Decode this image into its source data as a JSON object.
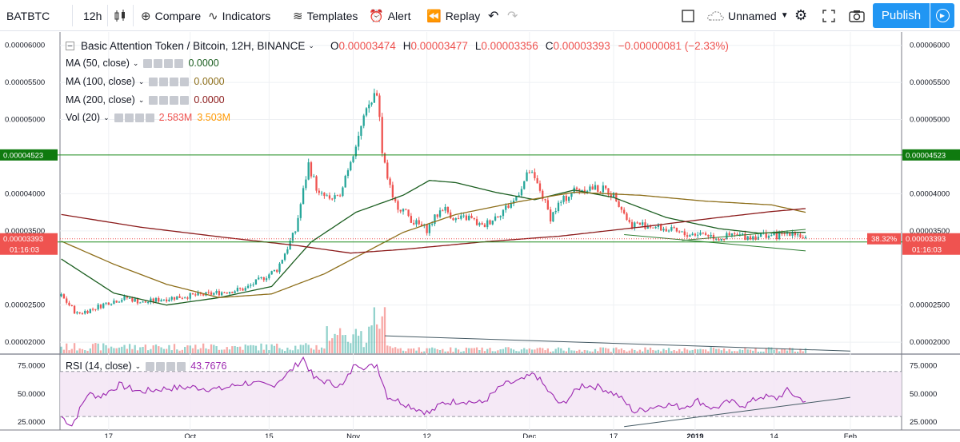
{
  "toolbar": {
    "symbol": "BATBTC",
    "interval": "12h",
    "compare": "Compare",
    "indicators": "Indicators",
    "templates": "Templates",
    "alert": "Alert",
    "replay": "Replay",
    "layout_name": "Unnamed",
    "publish": "Publish"
  },
  "legend": {
    "title": "Basic Attention Token / Bitcoin, 12H, BINANCE",
    "o_label": "O",
    "o_value": "0.00003474",
    "h_label": "H",
    "h_value": "0.00003477",
    "l_label": "L",
    "l_value": "0.00003356",
    "c_label": "C",
    "c_value": "0.00003393",
    "change": "−0.00000081 (−2.33%)",
    "ma50": {
      "label": "MA (50, close)",
      "value": "0.0000",
      "color": "#1b5e20"
    },
    "ma100": {
      "label": "MA (100, close)",
      "value": "0.0000",
      "color": "#8d6e1a"
    },
    "ma200": {
      "label": "MA (200, close)",
      "value": "0.0000",
      "color": "#8b1a1a"
    },
    "vol": {
      "label": "Vol (20)",
      "value1": "2.583M",
      "value2": "3.503M"
    },
    "rsi": {
      "label": "RSI (14, close)",
      "value": "43.7676"
    }
  },
  "colors": {
    "up": "#26a69a",
    "down": "#ef5350",
    "accent": "#2196f3",
    "rsi": "#9c27b0",
    "level_line": "#1b8a1b"
  },
  "chart_data": {
    "type": "candlestick",
    "price_ticks": [
      "0.00006000",
      "0.00005500",
      "0.00005000",
      "0.00004000",
      "0.00003500",
      "0.00002500",
      "0.00002000"
    ],
    "price_tick_values": [
      6e-05,
      5.5e-05,
      5e-05,
      4e-05,
      3.5e-05,
      2.5e-05,
      2e-05
    ],
    "ylim": [
      1.85e-05,
      6.18e-05
    ],
    "x_ticks": [
      "17",
      "Oct",
      "15",
      "Nov",
      "12",
      "Dec",
      "17",
      "2019",
      "14",
      "Feb"
    ],
    "x_tick_index": [
      18,
      49,
      79,
      111,
      139,
      178,
      210,
      241,
      271,
      300
    ],
    "n_bars": 320,
    "horizontal_levels": [
      {
        "label": "0.00004523",
        "value": 4.523e-05
      },
      {
        "label": "0.00003350",
        "value": 3.35e-05
      }
    ],
    "current_price": {
      "label": "0.00003393",
      "value": 3.393e-05,
      "countdown": "01:16:03",
      "pct": "38.32%"
    },
    "close_anchors": [
      [
        0,
        2.62e-05
      ],
      [
        6,
        2.38e-05
      ],
      [
        12,
        2.45e-05
      ],
      [
        18,
        2.54e-05
      ],
      [
        25,
        2.6e-05
      ],
      [
        31,
        2.53e-05
      ],
      [
        38,
        2.58e-05
      ],
      [
        47,
        2.62e-05
      ],
      [
        55,
        2.64e-05
      ],
      [
        62,
        2.68e-05
      ],
      [
        70,
        2.72e-05
      ],
      [
        76,
        2.85e-05
      ],
      [
        82,
        2.98e-05
      ],
      [
        89,
        3.5e-05
      ],
      [
        94,
        4.4e-05
      ],
      [
        98,
        3.98e-05
      ],
      [
        105,
        3.92e-05
      ],
      [
        109,
        4.35e-05
      ],
      [
        112,
        4.68e-05
      ],
      [
        117,
        5.2e-05
      ],
      [
        120,
        5.4e-05
      ],
      [
        122,
        4.6e-05
      ],
      [
        126,
        3.9e-05
      ],
      [
        130,
        3.78e-05
      ],
      [
        134,
        3.62e-05
      ],
      [
        139,
        3.52e-05
      ],
      [
        145,
        3.82e-05
      ],
      [
        150,
        3.65e-05
      ],
      [
        155,
        3.68e-05
      ],
      [
        160,
        3.55e-05
      ],
      [
        166,
        3.72e-05
      ],
      [
        172,
        3.9e-05
      ],
      [
        178,
        4.3e-05
      ],
      [
        182,
        4.05e-05
      ],
      [
        186,
        3.68e-05
      ],
      [
        189,
        3.85e-05
      ],
      [
        195,
        4.05e-05
      ],
      [
        201,
        4.08e-05
      ],
      [
        207,
        4.05e-05
      ],
      [
        211,
        3.95e-05
      ],
      [
        216,
        3.6e-05
      ],
      [
        222,
        3.58e-05
      ],
      [
        230,
        3.52e-05
      ],
      [
        237,
        3.45e-05
      ],
      [
        244,
        3.47e-05
      ],
      [
        250,
        3.4e-05
      ],
      [
        256,
        3.44e-05
      ],
      [
        262,
        3.42e-05
      ],
      [
        268,
        3.45e-05
      ],
      [
        273,
        3.43e-05
      ],
      [
        278,
        3.5e-05
      ],
      [
        283,
        3.39e-05
      ]
    ],
    "ma50_anchors": [
      [
        0,
        3.12e-05
      ],
      [
        20,
        2.66e-05
      ],
      [
        40,
        2.5e-05
      ],
      [
        60,
        2.6e-05
      ],
      [
        80,
        2.75e-05
      ],
      [
        95,
        3.35e-05
      ],
      [
        112,
        3.75e-05
      ],
      [
        130,
        3.98e-05
      ],
      [
        140,
        4.18e-05
      ],
      [
        150,
        4.15e-05
      ],
      [
        165,
        4.02e-05
      ],
      [
        180,
        3.92e-05
      ],
      [
        195,
        4.05e-05
      ],
      [
        210,
        3.95e-05
      ],
      [
        230,
        3.68e-05
      ],
      [
        250,
        3.53e-05
      ],
      [
        265,
        3.47e-05
      ],
      [
        283,
        3.48e-05
      ]
    ],
    "ma100_anchors": [
      [
        0,
        3.36e-05
      ],
      [
        20,
        3.05e-05
      ],
      [
        40,
        2.78e-05
      ],
      [
        60,
        2.6e-05
      ],
      [
        80,
        2.65e-05
      ],
      [
        100,
        2.92e-05
      ],
      [
        115,
        3.2e-05
      ],
      [
        130,
        3.48e-05
      ],
      [
        150,
        3.72e-05
      ],
      [
        175,
        3.9e-05
      ],
      [
        195,
        4.02e-05
      ],
      [
        220,
        3.98e-05
      ],
      [
        245,
        3.9e-05
      ],
      [
        270,
        3.85e-05
      ],
      [
        283,
        3.75e-05
      ]
    ],
    "ma200_anchors": [
      [
        0,
        3.72e-05
      ],
      [
        30,
        3.55e-05
      ],
      [
        60,
        3.42e-05
      ],
      [
        90,
        3.3e-05
      ],
      [
        110,
        3.2e-05
      ],
      [
        130,
        3.25e-05
      ],
      [
        160,
        3.35e-05
      ],
      [
        190,
        3.43e-05
      ],
      [
        220,
        3.55e-05
      ],
      [
        250,
        3.68e-05
      ],
      [
        270,
        3.76e-05
      ],
      [
        283,
        3.8e-05
      ]
    ],
    "rsi_ticks": [
      "75.0000",
      "50.0000",
      "25.0000"
    ],
    "rsi_tick_values": [
      75,
      50,
      25
    ],
    "rsi_ylim": [
      18,
      84
    ],
    "rsi_anchors": [
      [
        0,
        30
      ],
      [
        4,
        22
      ],
      [
        10,
        50
      ],
      [
        15,
        48
      ],
      [
        22,
        58
      ],
      [
        30,
        52
      ],
      [
        40,
        55
      ],
      [
        50,
        56
      ],
      [
        60,
        54
      ],
      [
        70,
        60
      ],
      [
        80,
        57
      ],
      [
        87,
        70
      ],
      [
        92,
        82
      ],
      [
        96,
        64
      ],
      [
        102,
        60
      ],
      [
        107,
        57
      ],
      [
        112,
        78
      ],
      [
        116,
        73
      ],
      [
        120,
        76
      ],
      [
        124,
        48
      ],
      [
        128,
        44
      ],
      [
        135,
        37
      ],
      [
        140,
        33
      ],
      [
        145,
        42
      ],
      [
        152,
        44
      ],
      [
        160,
        42
      ],
      [
        168,
        58
      ],
      [
        175,
        62
      ],
      [
        180,
        68
      ],
      [
        186,
        50
      ],
      [
        190,
        40
      ],
      [
        198,
        58
      ],
      [
        205,
        56
      ],
      [
        212,
        48
      ],
      [
        218,
        34
      ],
      [
        224,
        38
      ],
      [
        230,
        41
      ],
      [
        236,
        38
      ],
      [
        242,
        44
      ],
      [
        248,
        37
      ],
      [
        254,
        43
      ],
      [
        260,
        40
      ],
      [
        266,
        48
      ],
      [
        272,
        46
      ],
      [
        276,
        53
      ],
      [
        280,
        47
      ],
      [
        283,
        44
      ]
    ],
    "volume_peak_index": 120,
    "trendlines": [
      {
        "panel": "price",
        "from": [
          214,
          3.45e-05
        ],
        "to": [
          283,
          3.23e-05
        ]
      },
      {
        "panel": "price",
        "from": [
          236,
          3.37e-05
        ],
        "to": [
          283,
          3.52e-05
        ]
      },
      {
        "panel": "volume",
        "from": [
          123,
          2.085e-05
        ],
        "to": [
          300,
          1.88e-05
        ]
      },
      {
        "panel": "rsi",
        "from": [
          214,
          21
        ],
        "to": [
          300,
          47
        ]
      }
    ]
  }
}
